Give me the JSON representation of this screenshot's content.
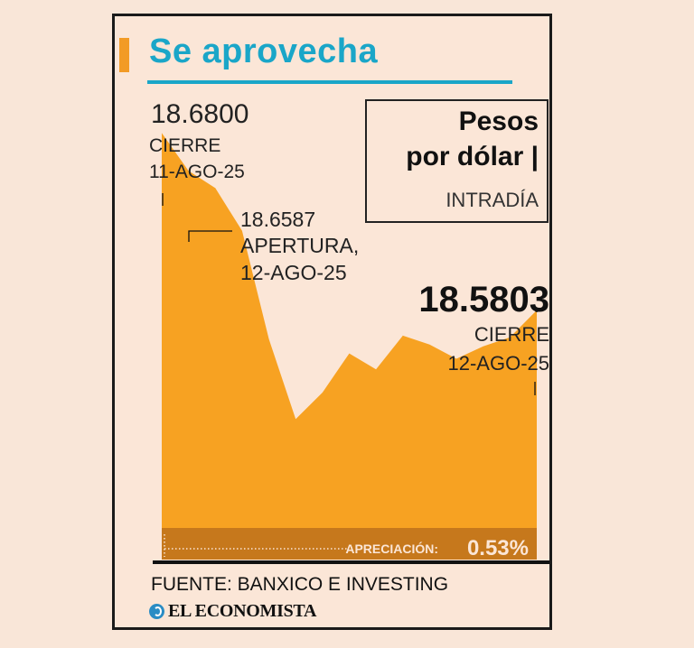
{
  "header": {
    "title": "Se aprovecha"
  },
  "legend": {
    "line1": "Pesos",
    "line2": "por dólar |",
    "line3": "INTRADÍA"
  },
  "annotations": {
    "start_value": "18.6800",
    "start_label": "CIERRE",
    "start_date": "11-AGO-25",
    "open_value": "18.6587",
    "open_label": "APERTURA,",
    "open_date": "12-AGO-25",
    "end_value": "18.5803",
    "end_label": "CIERRE",
    "end_date": "12-AGO-25"
  },
  "appreciation": {
    "label": "APRECIACIÓN:",
    "value": "0.53%"
  },
  "footer": {
    "source": "FUENTE: BANXICO E INVESTING",
    "brand": "EL ECONOMISTA"
  },
  "colors": {
    "area": "#f7a222",
    "band": "#c6781c",
    "accent": "#1aa6c8",
    "background": "#f9e6d8"
  },
  "chart_data": {
    "type": "area",
    "title": "Se aprovecha",
    "subtitle": "Pesos por dólar | INTRADÍA",
    "xlabel": "",
    "ylabel": "",
    "grid": false,
    "ylim": [
      18.44,
      18.7
    ],
    "series": [
      {
        "values": [
          18.68,
          18.6587,
          18.649,
          18.625,
          18.564,
          18.519,
          18.534,
          18.556,
          18.547,
          18.566,
          18.561,
          18.553,
          18.56,
          18.565,
          18.5803
        ]
      }
    ]
  }
}
